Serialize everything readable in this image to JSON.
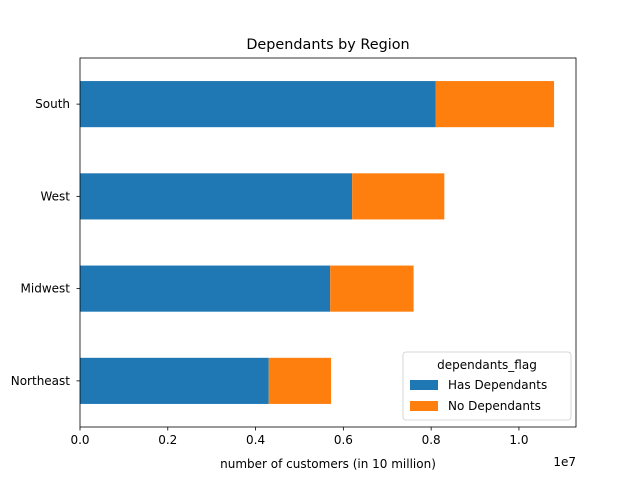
{
  "chart_data": {
    "type": "bar",
    "orientation": "horizontal",
    "stacked": true,
    "title": "Dependants by Region",
    "xlabel": "number of customers (in 10 million)",
    "ylabel": "",
    "x_offset_text": "1e7",
    "xlim": [
      0,
      11300000
    ],
    "xticks": [
      0,
      2000000,
      4000000,
      6000000,
      8000000,
      10000000
    ],
    "xtick_labels": [
      "0.0",
      "0.2",
      "0.4",
      "0.6",
      "0.8",
      "1.0"
    ],
    "categories": [
      "Northeast",
      "Midwest",
      "West",
      "South"
    ],
    "series": [
      {
        "name": "Has Dependants",
        "color": "#1f77b4",
        "values": [
          4300000,
          5700000,
          6200000,
          8100000
        ]
      },
      {
        "name": "No Dependants",
        "color": "#ff7f0e",
        "values": [
          1420000,
          1900000,
          2100000,
          2700000
        ]
      }
    ],
    "grid": false,
    "legend": {
      "title": "dependants_flag",
      "placement": "lower-right"
    }
  }
}
